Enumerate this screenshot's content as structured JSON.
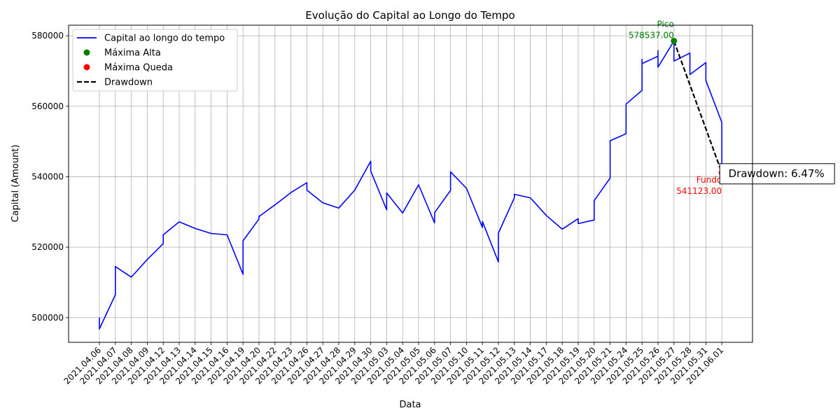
{
  "chart_data": {
    "type": "line",
    "title": "Evolução do Capital ao Longo do Tempo",
    "xlabel": "Data",
    "ylabel": "Capital (Amount)",
    "ylim": [
      493000,
      583000
    ],
    "yticks": [
      500000,
      520000,
      540000,
      560000,
      580000
    ],
    "grid": true,
    "legend_position": "top-left",
    "categories": [
      "2021.04.06",
      "2021.04.07",
      "2021.04.08",
      "2021.04.09",
      "2021.04.12",
      "2021.04.13",
      "2021.04.14",
      "2021.04.15",
      "2021.04.16",
      "2021.04.19",
      "2021.04.20",
      "2021.04.22",
      "2021.04.23",
      "2021.04.26",
      "2021.04.27",
      "2021.04.28",
      "2021.04.29",
      "2021.04.30",
      "2021.05.03",
      "2021.05.04",
      "2021.05.05",
      "2021.05.06",
      "2021.05.07",
      "2021.05.10",
      "2021.05.11",
      "2021.05.12",
      "2021.05.13",
      "2021.05.14",
      "2021.05.17",
      "2021.05.18",
      "2021.05.19",
      "2021.05.20",
      "2021.05.21",
      "2021.05.24",
      "2021.05.25",
      "2021.05.26",
      "2021.05.27",
      "2021.05.28",
      "2021.05.31",
      "2021.06.01"
    ],
    "series": [
      {
        "name": "Capital ao longo do tempo",
        "color": "#0000ff",
        "points": [
          [
            0,
            500000
          ],
          [
            0,
            496800
          ],
          [
            1,
            506500
          ],
          [
            1,
            514500
          ],
          [
            2,
            511500
          ],
          [
            3,
            516500
          ],
          [
            4,
            521000
          ],
          [
            4,
            523500
          ],
          [
            5,
            527200
          ],
          [
            6,
            525300
          ],
          [
            7,
            523900
          ],
          [
            8,
            523500
          ],
          [
            9,
            512300
          ],
          [
            9,
            521800
          ],
          [
            10,
            528000
          ],
          [
            10,
            528700
          ],
          [
            11,
            532000
          ],
          [
            12,
            535500
          ],
          [
            13,
            538300
          ],
          [
            13,
            536200
          ],
          [
            14,
            532600
          ],
          [
            15,
            531100
          ],
          [
            16,
            536200
          ],
          [
            17,
            544400
          ],
          [
            17,
            541600
          ],
          [
            18,
            530600
          ],
          [
            18,
            535400
          ],
          [
            19,
            529700
          ],
          [
            20,
            537700
          ],
          [
            21,
            526900
          ],
          [
            21,
            529800
          ],
          [
            22,
            536100
          ],
          [
            22,
            541400
          ],
          [
            23,
            536700
          ],
          [
            24,
            525600
          ],
          [
            24,
            527300
          ],
          [
            25,
            515800
          ],
          [
            25,
            524000
          ],
          [
            26,
            534000
          ],
          [
            26,
            535000
          ],
          [
            27,
            534000
          ],
          [
            28,
            529000
          ],
          [
            29,
            525100
          ],
          [
            30,
            528100
          ],
          [
            30,
            526700
          ],
          [
            31,
            527700
          ],
          [
            31,
            533200
          ],
          [
            32,
            539600
          ],
          [
            32,
            550200
          ],
          [
            33,
            552200
          ],
          [
            33,
            560600
          ],
          [
            34,
            564500
          ],
          [
            34,
            573300
          ],
          [
            34,
            572100
          ],
          [
            35,
            574200
          ],
          [
            35,
            575800
          ],
          [
            35,
            571100
          ],
          [
            36,
            578500
          ],
          [
            36,
            572800
          ],
          [
            37,
            575100
          ],
          [
            37,
            569000
          ],
          [
            38,
            572400
          ],
          [
            38,
            567300
          ],
          [
            39,
            555400
          ],
          [
            39,
            543600
          ]
        ]
      }
    ],
    "peak": {
      "x": 36,
      "y": 578537.0,
      "label": "Pico",
      "value_label": "578537.00",
      "color": "#008000"
    },
    "trough": {
      "x": 39,
      "y": 541123.0,
      "label": "Fundo",
      "value_label": "541123.00",
      "color": "#ff0000"
    },
    "drawdown": {
      "label": "Drawdown: 6.47%",
      "color": "#000000"
    },
    "legend": [
      {
        "label": "Capital ao longo do tempo",
        "kind": "line",
        "color": "#0000ff"
      },
      {
        "label": "Máxima Alta",
        "kind": "dot",
        "color": "#008000"
      },
      {
        "label": "Máxima Queda",
        "kind": "dot",
        "color": "#ff0000"
      },
      {
        "label": "Drawdown",
        "kind": "dash",
        "color": "#000000"
      }
    ]
  }
}
